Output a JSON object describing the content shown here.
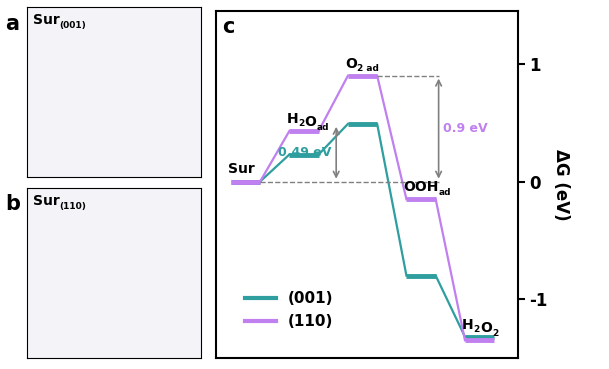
{
  "panels": [
    {
      "letter": "a",
      "label": [
        [
          "Sur",
          false
        ],
        [
          "(001)",
          true
        ]
      ]
    },
    {
      "letter": "b",
      "label": [
        [
          "Sur",
          false
        ],
        [
          "(110)",
          true
        ]
      ]
    }
  ],
  "chart_data": {
    "type": "energy_diagram",
    "letter": "c",
    "ylabel": "ΔG (eV)",
    "steps": [
      [
        [
          "Sur",
          false
        ]
      ],
      [
        [
          "H",
          false
        ],
        [
          "2",
          true
        ],
        [
          "O",
          false
        ],
        [
          "ad",
          true
        ]
      ],
      [
        [
          "O",
          false
        ],
        [
          "2 ad",
          true
        ]
      ],
      [
        [
          "OOH",
          false
        ],
        [
          "ad",
          true
        ]
      ],
      [
        [
          "H",
          false
        ],
        [
          "2",
          true
        ],
        [
          "O",
          false
        ],
        [
          "2",
          true
        ]
      ]
    ],
    "series": [
      {
        "name": "(001)",
        "color": "#2e9e9e",
        "values": [
          0,
          0.23,
          0.49,
          -0.8,
          -1.32
        ]
      },
      {
        "name": "(110)",
        "color": "#c080f0",
        "values": [
          0,
          0.43,
          0.9,
          -0.15,
          -1.35
        ]
      }
    ],
    "ylim": [
      -1.5,
      1.45
    ],
    "yticks": [
      -1,
      0,
      1
    ],
    "tick_labels": "y",
    "legend": "lower left",
    "annotations": [
      {
        "text": "0.49 eV",
        "from": 0,
        "to": 0.49,
        "series": "(001)"
      },
      {
        "text": "0.9 eV",
        "from": 0,
        "to": 0.9,
        "series": "(110)"
      }
    ]
  }
}
